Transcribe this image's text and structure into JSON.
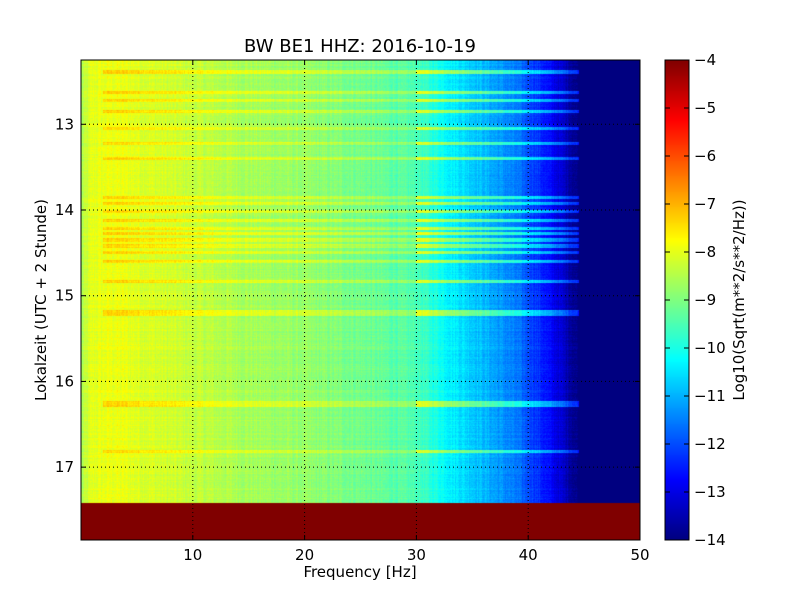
{
  "chart_data": {
    "type": "heatmap",
    "title": "BW BE1 HHZ: 2016-10-19",
    "xlabel": "Frequency [Hz]",
    "ylabel": "Lokalzeit (UTC + 2 Stunde)",
    "xlim": [
      0,
      50
    ],
    "ylim": [
      12.25,
      17.85
    ],
    "y_inverted": true,
    "x_ticks": [
      10,
      20,
      30,
      40,
      50
    ],
    "y_ticks": [
      13,
      14,
      15,
      16,
      17
    ],
    "grid": true,
    "colormap": "jet",
    "colorbar": {
      "label": "Log10(Sqrt(m**2/s**2/Hz))",
      "range": [
        -14,
        -4
      ],
      "ticks": [
        -4,
        -5,
        -6,
        -7,
        -8,
        -9,
        -10,
        -11,
        -12,
        -13,
        -14
      ]
    },
    "spectral_profile": {
      "frequency_hz": [
        0,
        1,
        3,
        8,
        15,
        20,
        25,
        30,
        33,
        36,
        39,
        41,
        43,
        44.5,
        50
      ],
      "log10_amplitude": [
        -8.6,
        -8.0,
        -7.9,
        -8.2,
        -8.6,
        -8.8,
        -9.1,
        -9.5,
        -10.3,
        -10.9,
        -11.6,
        -12.3,
        -13.2,
        -14.0,
        -14.0
      ]
    },
    "disturbance_lines_hours": [
      12.38,
      12.4,
      12.63,
      12.72,
      12.85,
      13.05,
      13.22,
      13.4,
      13.85,
      13.92,
      14.02,
      14.12,
      14.22,
      14.27,
      14.35,
      14.42,
      14.5,
      14.6,
      14.83,
      15.18,
      15.22,
      16.25,
      16.28,
      16.82
    ],
    "no_data_region_hours": [
      17.42,
      17.85
    ],
    "no_data_value": -4
  }
}
